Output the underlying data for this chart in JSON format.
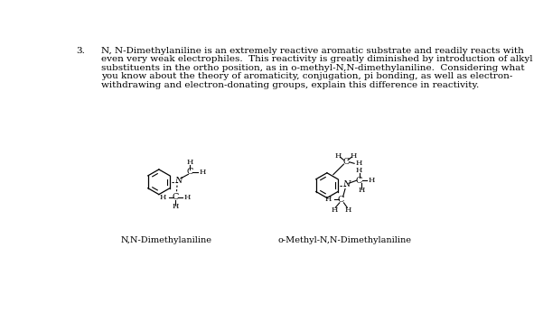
{
  "background_color": "#ffffff",
  "number_label": "3.",
  "paragraph_lines": [
    "N, N-Dimethylaniline is an extremely reactive aromatic substrate and readily reacts with",
    "even very weak electrophiles.  This reactivity is greatly diminished by introduction of alkyl",
    "substituents in the ortho position, as in o-methyl-N,N-dimethylaniline.  Considering what",
    "you know about the theory of aromaticity, conjugation, pi bonding, as well as electron-",
    "withdrawing and electron-donating groups, explain this difference in reactivity."
  ],
  "label1": "N,N-Dimethylaniline",
  "label2": "o-Methyl-N,N-Dimethylaniline",
  "font_size_text": 7.5,
  "font_size_label": 7.0,
  "font_size_atom": 7.0,
  "font_size_atom_small": 6.0
}
